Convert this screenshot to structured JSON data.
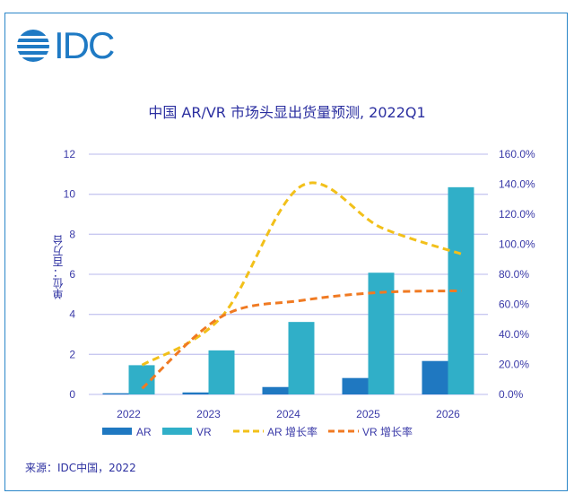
{
  "logo": {
    "text": "IDC"
  },
  "colors": {
    "ar": "#1f78c1",
    "vr": "#30afc8",
    "ar_rate": "#f2c01a",
    "vr_rate": "#f07a22",
    "grid": "#c8c8f0",
    "text": "#2b2fa0"
  },
  "chart_data": {
    "type": "bar+line",
    "title": "中国 AR/VR 市场头显出货量预测, 2022Q1",
    "ylabel": "单位：百万台",
    "categories": [
      "2022",
      "2023",
      "2024",
      "2025",
      "2026"
    ],
    "ylim": [
      0,
      12
    ],
    "yticks": [
      "0",
      "2",
      "4",
      "6",
      "8",
      "10",
      "12"
    ],
    "y2lim": [
      0,
      160
    ],
    "y2ticks": [
      "0.0%",
      "20.0%",
      "40.0%",
      "60.0%",
      "80.0%",
      "100.0%",
      "120.0%",
      "140.0%",
      "160.0%"
    ],
    "grid": true,
    "legend_position": "bottom",
    "series": [
      {
        "name": "AR",
        "type": "bar",
        "axis": "left",
        "values": [
          0.06,
          0.1,
          0.37,
          0.82,
          1.67
        ]
      },
      {
        "name": "VR",
        "type": "bar",
        "axis": "left",
        "values": [
          1.46,
          2.2,
          3.62,
          6.08,
          10.35
        ]
      },
      {
        "name": "AR 增长率",
        "type": "line",
        "axis": "right",
        "style": "dashed",
        "values": [
          19.5,
          52,
          139,
          111,
          93.5
        ]
      },
      {
        "name": "VR 增长率",
        "type": "line",
        "axis": "right",
        "style": "dashed",
        "values": [
          4,
          52,
          62.6,
          68,
          69
        ]
      }
    ]
  },
  "source": "来源：IDC中国，2022"
}
